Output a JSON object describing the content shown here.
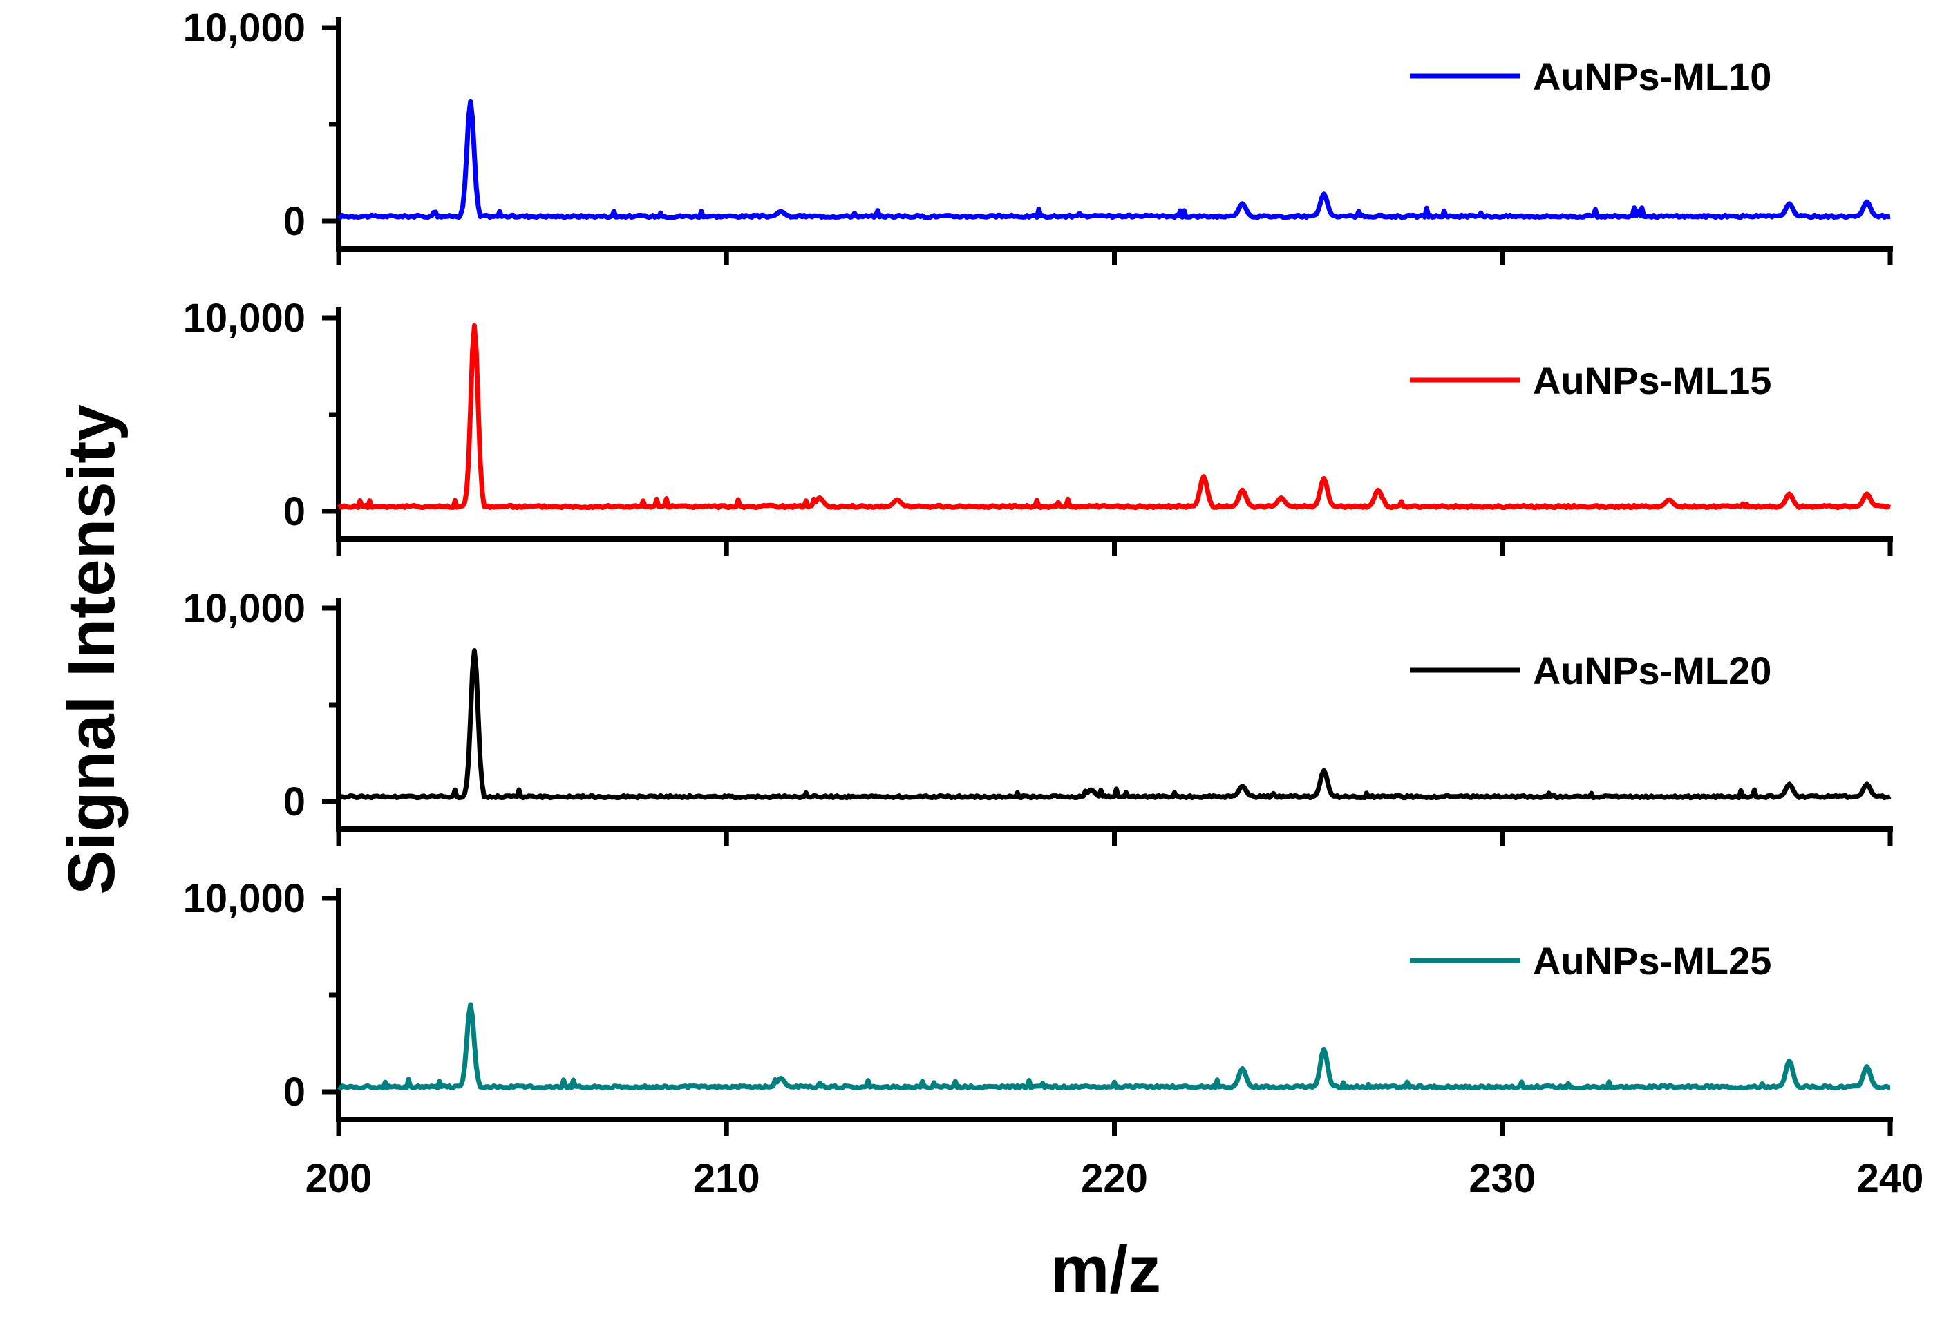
{
  "chart_data": {
    "type": "line",
    "xlabel": "m/z",
    "ylabel": "Signal Intensity",
    "xlim": [
      200,
      240
    ],
    "ylim": [
      0,
      10000
    ],
    "x_ticks": [
      {
        "value": 200,
        "label": "200"
      },
      {
        "value": 210,
        "label": "210"
      },
      {
        "value": 220,
        "label": "220"
      },
      {
        "value": 230,
        "label": "230"
      },
      {
        "value": 240,
        "label": "240"
      }
    ],
    "y_ticks": [
      {
        "value": 0,
        "label": "0"
      },
      {
        "value": 10000,
        "label": "10,000"
      }
    ],
    "legend_placement": "top-right",
    "grid": false,
    "baseline": 250,
    "series": [
      {
        "name": "AuNPs-ML10",
        "color": "#0000ff",
        "peaks": [
          {
            "mz": 203.4,
            "intensity": 6200
          },
          {
            "mz": 211.4,
            "intensity": 500
          },
          {
            "mz": 223.3,
            "intensity": 900
          },
          {
            "mz": 225.4,
            "intensity": 1400
          },
          {
            "mz": 237.4,
            "intensity": 900
          },
          {
            "mz": 239.4,
            "intensity": 1000
          }
        ]
      },
      {
        "name": "AuNPs-ML15",
        "color": "#ff0000",
        "peaks": [
          {
            "mz": 203.5,
            "intensity": 9600
          },
          {
            "mz": 212.4,
            "intensity": 700
          },
          {
            "mz": 214.4,
            "intensity": 600
          },
          {
            "mz": 222.3,
            "intensity": 1800
          },
          {
            "mz": 223.3,
            "intensity": 1100
          },
          {
            "mz": 224.3,
            "intensity": 700
          },
          {
            "mz": 225.4,
            "intensity": 1700
          },
          {
            "mz": 226.8,
            "intensity": 1100
          },
          {
            "mz": 234.3,
            "intensity": 600
          },
          {
            "mz": 237.4,
            "intensity": 900
          },
          {
            "mz": 239.4,
            "intensity": 900
          }
        ]
      },
      {
        "name": "AuNPs-ML20",
        "color": "#000000",
        "peaks": [
          {
            "mz": 203.5,
            "intensity": 7800
          },
          {
            "mz": 219.4,
            "intensity": 600
          },
          {
            "mz": 223.3,
            "intensity": 800
          },
          {
            "mz": 225.4,
            "intensity": 1600
          },
          {
            "mz": 237.4,
            "intensity": 900
          },
          {
            "mz": 239.4,
            "intensity": 900
          }
        ]
      },
      {
        "name": "AuNPs-ML25",
        "color": "#008080",
        "peaks": [
          {
            "mz": 203.4,
            "intensity": 4500
          },
          {
            "mz": 211.4,
            "intensity": 700
          },
          {
            "mz": 223.3,
            "intensity": 1200
          },
          {
            "mz": 225.4,
            "intensity": 2200
          },
          {
            "mz": 237.4,
            "intensity": 1600
          },
          {
            "mz": 239.4,
            "intensity": 1300
          }
        ]
      }
    ]
  }
}
